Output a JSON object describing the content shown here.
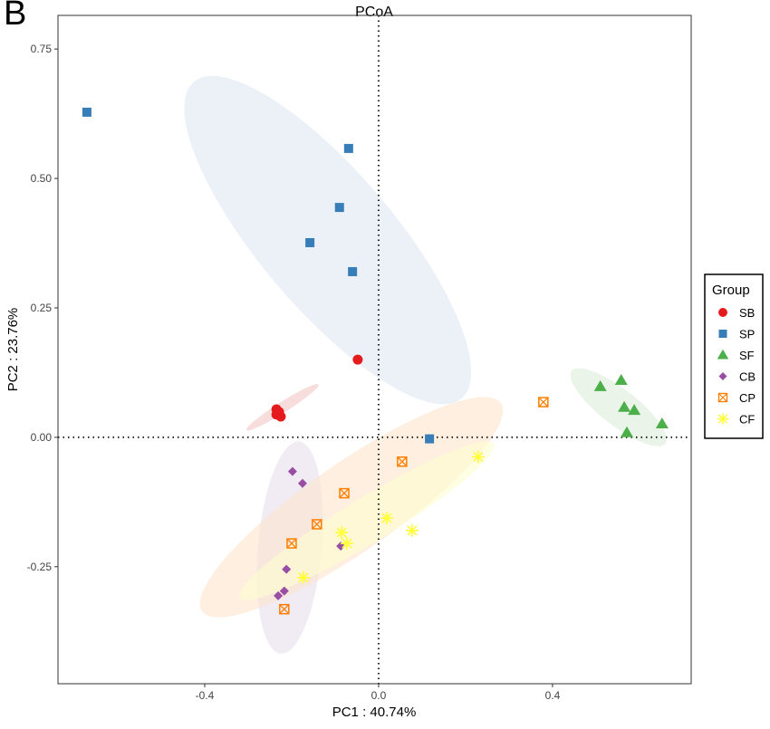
{
  "panel_label": "B",
  "chart_data": {
    "type": "scatter",
    "title": "PCoA",
    "xlabel": "PC1 : 40.74%",
    "ylabel": "PC2 : 23.76%",
    "xlim": [
      -0.7375,
      0.719
    ],
    "ylim": [
      -0.476,
      0.815
    ],
    "xticks": [
      {
        "value": -0.4,
        "label": "-0.4"
      },
      {
        "value": 0.0,
        "label": "0.0"
      },
      {
        "value": 0.4,
        "label": "0.4"
      }
    ],
    "yticks": [
      {
        "value": 0.75,
        "label": "0.75"
      },
      {
        "value": 0.5,
        "label": "0.50"
      },
      {
        "value": 0.25,
        "label": "0.25"
      },
      {
        "value": 0.0,
        "label": "0.00"
      },
      {
        "value": -0.25,
        "label": "-0.25"
      }
    ],
    "grid": false,
    "reference_lines": {
      "x": 0,
      "y": 0
    },
    "legend": {
      "title": "Group",
      "placement": "right"
    },
    "series": [
      {
        "name": "SB",
        "shape": "circle",
        "color": "#e41a1c",
        "points": [
          [
            -0.235,
            0.054
          ],
          [
            -0.229,
            0.049
          ],
          [
            -0.225,
            0.04
          ],
          [
            -0.235,
            0.044
          ],
          [
            -0.048,
            0.15
          ]
        ],
        "ellipse": {
          "center": [
            -0.221,
            0.058
          ],
          "a": [
            0.083,
            0.044
          ],
          "b": [
            0.006,
            -0.009
          ]
        }
      },
      {
        "name": "SP",
        "shape": "square",
        "color": "#377eb8",
        "points": [
          [
            -0.671,
            0.628
          ],
          [
            -0.069,
            0.558
          ],
          [
            -0.09,
            0.444
          ],
          [
            -0.158,
            0.376
          ],
          [
            -0.06,
            0.32
          ],
          [
            0.117,
            -0.003
          ]
        ],
        "ellipse": {
          "center": [
            -0.117,
            0.381
          ],
          "a": [
            0.308,
            -0.306
          ],
          "b": [
            0.119,
            0.084
          ]
        }
      },
      {
        "name": "SF",
        "shape": "triangle",
        "color": "#4daf4a",
        "points": [
          [
            0.51,
            0.098
          ],
          [
            0.558,
            0.11
          ],
          [
            0.565,
            0.058
          ],
          [
            0.588,
            0.052
          ],
          [
            0.571,
            0.009
          ],
          [
            0.652,
            0.026
          ]
        ],
        "ellipse": {
          "center": [
            0.552,
            0.058
          ],
          "a": [
            0.108,
            -0.07
          ],
          "b": [
            -0.025,
            -0.028
          ]
        }
      },
      {
        "name": "CB",
        "shape": "diamond",
        "color": "#984ea3",
        "points": [
          [
            -0.198,
            -0.066
          ],
          [
            -0.175,
            -0.089
          ],
          [
            -0.212,
            -0.255
          ],
          [
            -0.217,
            -0.297
          ],
          [
            -0.231,
            -0.306
          ],
          [
            -0.087,
            -0.21
          ]
        ],
        "ellipse": {
          "center": [
            -0.204,
            -0.213
          ],
          "a": [
            0.021,
            0.205
          ],
          "b": [
            0.073,
            -0.005
          ]
        }
      },
      {
        "name": "CP",
        "shape": "boxx",
        "color": "#ff7f00",
        "points": [
          [
            0.379,
            0.068
          ],
          [
            0.054,
            -0.047
          ],
          [
            -0.079,
            -0.108
          ],
          [
            -0.142,
            -0.168
          ],
          [
            -0.2,
            -0.205
          ],
          [
            -0.217,
            -0.332
          ]
        ],
        "ellipse": {
          "center": [
            -0.0625,
            -0.135
          ],
          "a": [
            0.344,
            0.201
          ],
          "b": [
            0.058,
            -0.07
          ]
        }
      },
      {
        "name": "CF",
        "shape": "asterisk",
        "color": "#ffff33",
        "points": [
          [
            0.229,
            -0.038
          ],
          [
            0.019,
            -0.156
          ],
          [
            0.077,
            -0.18
          ],
          [
            -0.085,
            -0.184
          ],
          [
            -0.073,
            -0.205
          ],
          [
            -0.173,
            -0.271
          ]
        ],
        "ellipse": {
          "center": [
            -0.027,
            -0.161
          ],
          "a": [
            0.292,
            0.149
          ],
          "b": [
            0.027,
            -0.037
          ]
        }
      }
    ]
  }
}
